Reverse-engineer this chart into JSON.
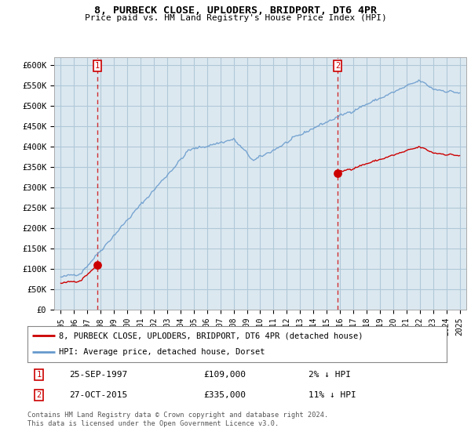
{
  "title": "8, PURBECK CLOSE, UPLODERS, BRIDPORT, DT6 4PR",
  "subtitle": "Price paid vs. HM Land Registry's House Price Index (HPI)",
  "legend_line1": "8, PURBECK CLOSE, UPLODERS, BRIDPORT, DT6 4PR (detached house)",
  "legend_line2": "HPI: Average price, detached house, Dorset",
  "price_color": "#cc0000",
  "hpi_color": "#6699cc",
  "background_color": "#ffffff",
  "plot_bg_color": "#dce8f0",
  "grid_color": "#b0c8d8",
  "ylim": [
    0,
    620000
  ],
  "yticks": [
    0,
    50000,
    100000,
    150000,
    200000,
    250000,
    300000,
    350000,
    400000,
    450000,
    500000,
    550000,
    600000
  ],
  "ytick_labels": [
    "£0",
    "£50K",
    "£100K",
    "£150K",
    "£200K",
    "£250K",
    "£300K",
    "£350K",
    "£400K",
    "£450K",
    "£500K",
    "£550K",
    "£600K"
  ],
  "xlim": [
    1994.5,
    2025.5
  ],
  "xticks": [
    1995,
    1996,
    1997,
    1998,
    1999,
    2000,
    2001,
    2002,
    2003,
    2004,
    2005,
    2006,
    2007,
    2008,
    2009,
    2010,
    2011,
    2012,
    2013,
    2014,
    2015,
    2016,
    2017,
    2018,
    2019,
    2020,
    2021,
    2022,
    2023,
    2024,
    2025
  ],
  "sale1_x": 1997.75,
  "sale1_y": 109000,
  "sale2_x": 2015.83,
  "sale2_y": 335000,
  "footer": "Contains HM Land Registry data © Crown copyright and database right 2024.\nThis data is licensed under the Open Government Licence v3.0."
}
